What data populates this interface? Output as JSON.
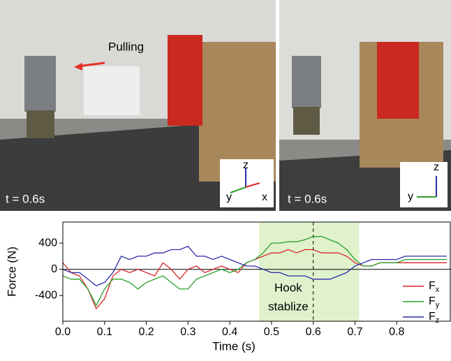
{
  "photos": [
    {
      "caption": "Pulling",
      "time": "t = 0.6s",
      "axes": [
        "z",
        "y",
        "x"
      ]
    },
    {
      "time": "t = 0.6s",
      "axes": [
        "z",
        "y"
      ]
    }
  ],
  "chart_data": {
    "type": "line",
    "xlabel": "Time (s)",
    "ylabel": "Force (N)",
    "annotation": [
      "Hook",
      "stablize"
    ],
    "shade": [
      0.47,
      0.71
    ],
    "vline": 0.6,
    "xlim": [
      0,
      0.93
    ],
    "ylim": [
      -790,
      720
    ],
    "xticks": [
      {
        "value": 0,
        "label": "0.0"
      },
      0.1,
      0.2,
      0.3,
      0.4,
      0.5,
      0.6,
      0.7,
      0.8
    ],
    "yticks": [
      -400,
      0,
      400
    ],
    "x": [
      0,
      0.02,
      0.04,
      0.06,
      0.08,
      0.1,
      0.12,
      0.14,
      0.16,
      0.18,
      0.2,
      0.22,
      0.24,
      0.26,
      0.28,
      0.3,
      0.32,
      0.34,
      0.36,
      0.38,
      0.4,
      0.42,
      0.44,
      0.46,
      0.48,
      0.5,
      0.52,
      0.54,
      0.56,
      0.58,
      0.6,
      0.62,
      0.64,
      0.66,
      0.68,
      0.7,
      0.72,
      0.74,
      0.76,
      0.78,
      0.8,
      0.82,
      0.84,
      0.86,
      0.88,
      0.9,
      0.92
    ],
    "series": [
      {
        "name": "Fx",
        "color": "#d62728",
        "values": [
          100,
          -50,
          -100,
          -300,
          -600,
          -450,
          -100,
          0,
          -50,
          0,
          -50,
          -100,
          100,
          0,
          -150,
          0,
          50,
          -50,
          0,
          50,
          0,
          -50,
          100,
          150,
          200,
          250,
          250,
          300,
          250,
          300,
          300,
          250,
          250,
          250,
          200,
          100,
          50,
          50,
          100,
          100,
          100,
          100,
          100,
          100,
          100,
          100,
          100
        ]
      },
      {
        "name": "Fy",
        "color": "#2ca02c",
        "values": [
          -100,
          -150,
          -150,
          -300,
          -550,
          -300,
          -150,
          -150,
          -200,
          -300,
          -200,
          -150,
          -100,
          -200,
          -300,
          -300,
          -150,
          -100,
          -50,
          0,
          -50,
          0,
          100,
          150,
          250,
          400,
          400,
          420,
          420,
          450,
          500,
          500,
          450,
          400,
          300,
          150,
          50,
          50,
          100,
          100,
          100,
          150,
          150,
          150,
          150,
          150,
          150
        ]
      },
      {
        "name": "Fz",
        "color": "#2a2aa8",
        "values": [
          0,
          -50,
          -50,
          -150,
          -250,
          -200,
          -50,
          200,
          150,
          200,
          200,
          250,
          250,
          300,
          300,
          350,
          200,
          200,
          150,
          200,
          150,
          100,
          50,
          50,
          0,
          -50,
          -50,
          -100,
          -100,
          -100,
          -150,
          -150,
          -150,
          -100,
          -50,
          50,
          100,
          150,
          150,
          150,
          150,
          200,
          200,
          200,
          200,
          200,
          200
        ]
      }
    ]
  }
}
